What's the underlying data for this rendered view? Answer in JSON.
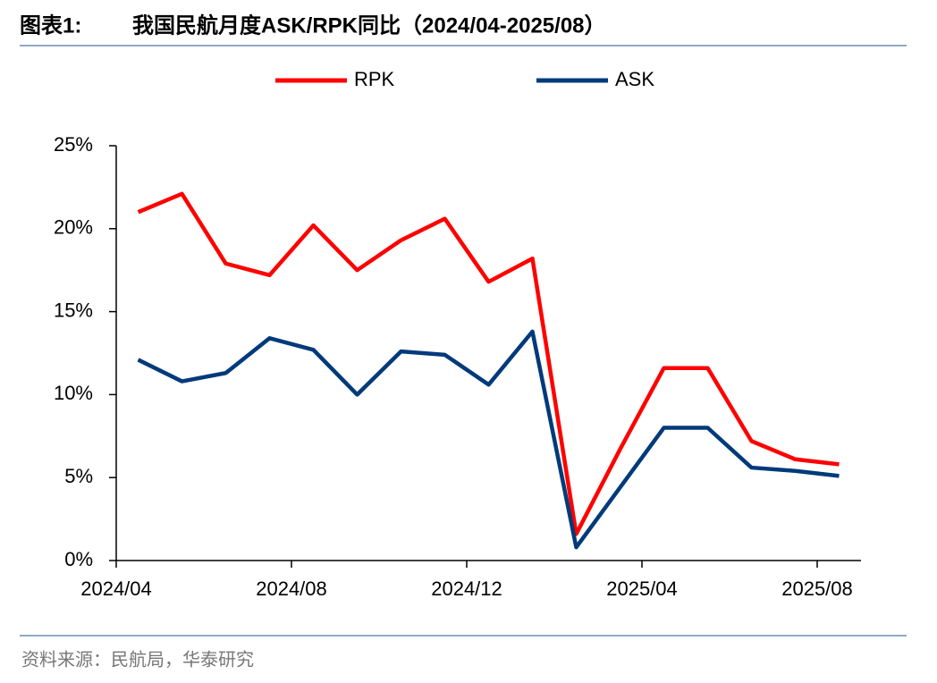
{
  "chart_data": {
    "type": "line",
    "figure_label": "图表1:",
    "title": "我国民航月度ASK/RPK同比（2024/04-2025/08）",
    "categories": [
      "2024/04",
      null,
      null,
      null,
      "2024/08",
      null,
      null,
      null,
      "2024/12",
      null,
      null,
      null,
      "2025/04",
      null,
      null,
      null,
      "2025/08"
    ],
    "series": [
      {
        "name": "RPK",
        "color": "#ff0000",
        "values": [
          21.0,
          22.1,
          17.9,
          17.2,
          20.2,
          17.5,
          19.3,
          20.6,
          16.8,
          18.2,
          1.6,
          6.7,
          11.6,
          11.6,
          7.2,
          6.1,
          5.8
        ]
      },
      {
        "name": "ASK",
        "color": "#003a7a",
        "values": [
          12.1,
          10.8,
          11.3,
          13.4,
          12.7,
          10.0,
          12.6,
          12.4,
          10.6,
          13.8,
          0.8,
          4.4,
          8.0,
          8.0,
          5.6,
          5.4,
          5.1
        ]
      }
    ],
    "ylim": [
      0,
      25
    ],
    "yticks": [
      {
        "value": 0,
        "label": "0%"
      },
      {
        "value": 5,
        "label": "5%"
      },
      {
        "value": 10,
        "label": "10%"
      },
      {
        "value": 15,
        "label": "15%"
      },
      {
        "value": 20,
        "label": "20%"
      },
      {
        "value": 25,
        "label": "25%"
      }
    ],
    "legend": "top",
    "source": "资料来源：民航局，华泰研究"
  }
}
